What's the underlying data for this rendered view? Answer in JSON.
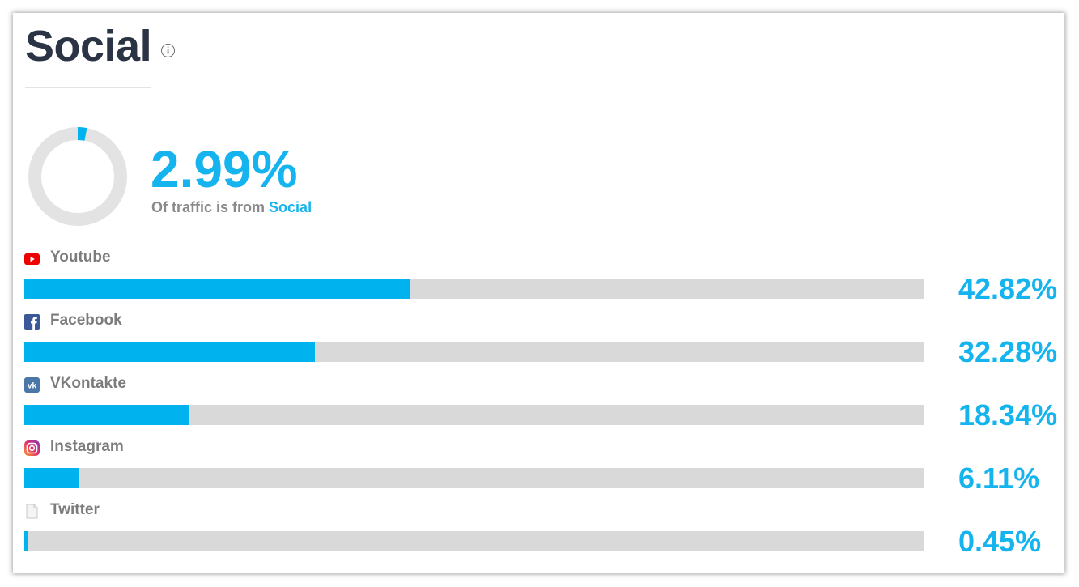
{
  "widget": {
    "title": "Social",
    "info_icon": "info-icon",
    "summary_value": "2.99%",
    "summary_fraction": 0.0299,
    "summary_text": "Of traffic is from",
    "summary_source": "Social"
  },
  "chart_data": {
    "type": "bar",
    "orientation": "horizontal",
    "title": "Social",
    "categories": [
      "Youtube",
      "Facebook",
      "VKontakte",
      "Instagram",
      "Twitter"
    ],
    "values": [
      42.82,
      32.28,
      18.34,
      6.11,
      0.45
    ],
    "value_labels": [
      "42.82%",
      "32.28%",
      "18.34%",
      "6.11%",
      "0.45%"
    ],
    "xlim": [
      0,
      100
    ],
    "grid": false
  },
  "items": [
    {
      "label": "Youtube",
      "icon": "youtube-icon",
      "value": "42.82%"
    },
    {
      "label": "Facebook",
      "icon": "facebook-icon",
      "value": "32.28%"
    },
    {
      "label": "VKontakte",
      "icon": "vkontakte-icon",
      "value": "18.34%"
    },
    {
      "label": "Instagram",
      "icon": "instagram-icon",
      "value": "6.11%"
    },
    {
      "label": "Twitter",
      "icon": "generic-page-icon",
      "value": "0.45%"
    }
  ],
  "colors": {
    "accent": "#00b3ef",
    "track": "#d9d9d9",
    "title": "#2a3444",
    "label": "#7c7c7c"
  }
}
